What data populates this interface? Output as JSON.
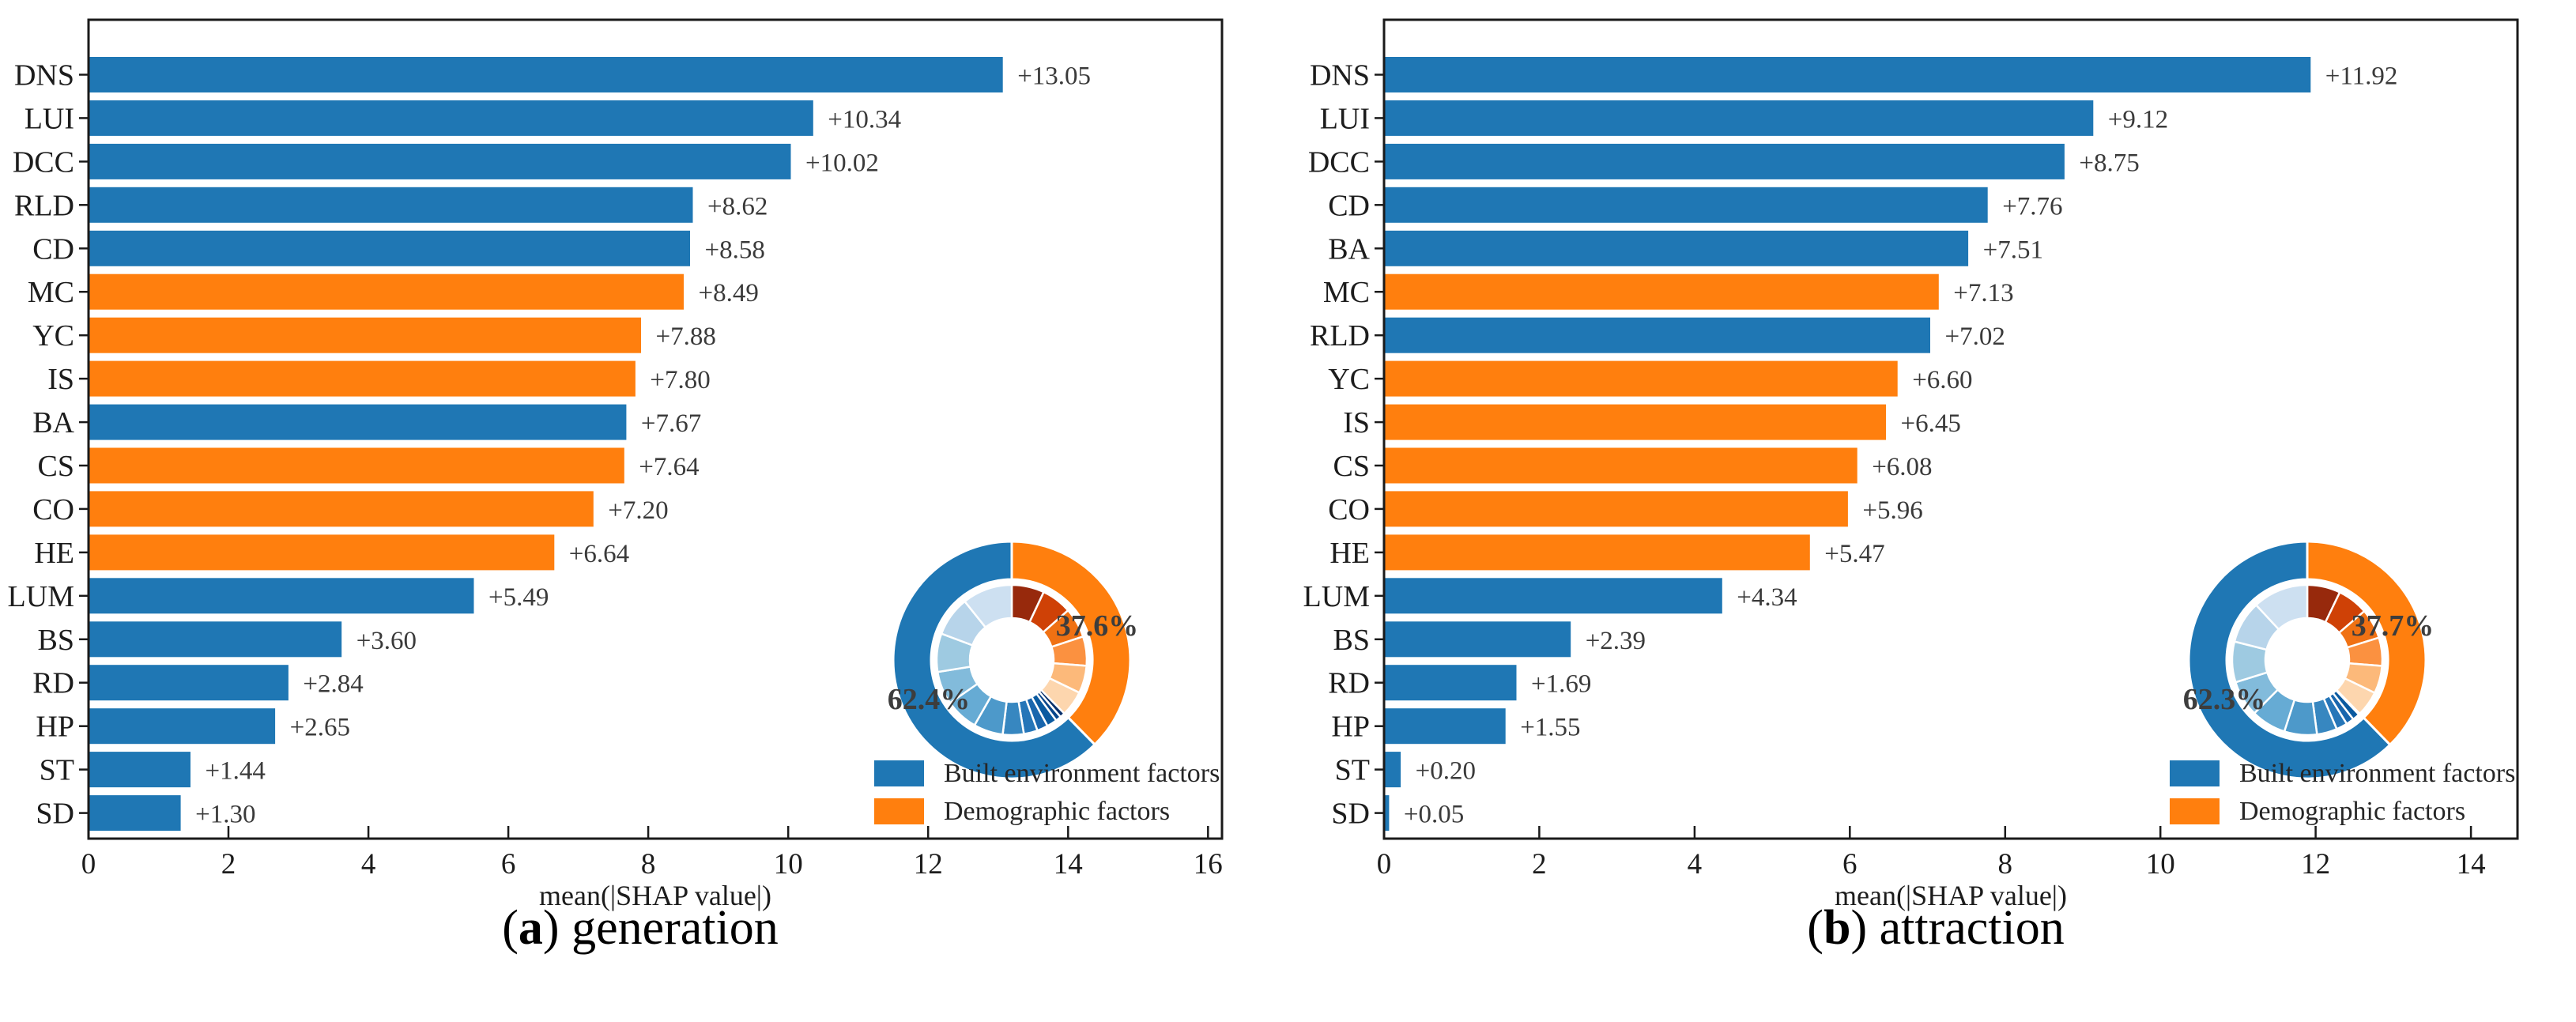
{
  "colors": {
    "built": "#1f77b4",
    "demographic": "#ff7f0e",
    "frame": "#1a1a1a",
    "tick_text": "#1c1c1c",
    "value_text": "#3a3a3a",
    "pct_text": "#3d3d3d",
    "legend_text": "#262626",
    "inner_oranges": [
      "#97290c",
      "#cf4106",
      "#f07113",
      "#fb9140",
      "#fcb97a",
      "#fdd6ae"
    ],
    "inner_blues": [
      "#08306b",
      "#08468b",
      "#0a5aa0",
      "#1966ad",
      "#2676b8",
      "#3787c0",
      "#4d99ca",
      "#66abd4",
      "#82bbdb",
      "#9ecae1",
      "#b7d4ea",
      "#cde0f1"
    ]
  },
  "chart_data": [
    {
      "type": "bar",
      "orientation": "horizontal",
      "caption": {
        "pre": "(",
        "letter": "a",
        "post": ") generation"
      },
      "categories": [
        "DNS",
        "LUI",
        "DCC",
        "RLD",
        "CD",
        "MC",
        "YC",
        "IS",
        "BA",
        "CS",
        "CO",
        "HE",
        "LUM",
        "BS",
        "RD",
        "HP",
        "ST",
        "SD"
      ],
      "values": [
        13.05,
        10.34,
        10.02,
        8.62,
        8.58,
        8.49,
        7.88,
        7.8,
        7.67,
        7.64,
        7.2,
        6.64,
        5.49,
        3.6,
        2.84,
        2.65,
        1.44,
        1.3
      ],
      "value_labels": [
        "+13.05",
        "+10.34",
        "+10.02",
        "+8.62",
        "+8.58",
        "+8.49",
        "+7.88",
        "+7.80",
        "+7.67",
        "+7.64",
        "+7.20",
        "+6.64",
        "+5.49",
        "+3.60",
        "+2.84",
        "+2.65",
        "+1.44",
        "+1.30"
      ],
      "groups": [
        "built",
        "built",
        "built",
        "built",
        "built",
        "demographic",
        "demographic",
        "demographic",
        "built",
        "demographic",
        "demographic",
        "demographic",
        "built",
        "built",
        "built",
        "built",
        "built",
        "built"
      ],
      "xlabel": "mean(|SHAP value|)",
      "xlim": [
        0,
        16.2
      ],
      "xticks": [
        0,
        2,
        4,
        6,
        8,
        10,
        12,
        14,
        16
      ],
      "grid": false,
      "legend": [
        "Built environment factors",
        "Demographic factors"
      ],
      "legend_position": "lower right",
      "inset_donut": {
        "type": "pie",
        "outer": [
          {
            "name": "Built environment factors",
            "pct": 62.4
          },
          {
            "name": "Demographic factors",
            "pct": 37.6
          }
        ],
        "labels": [
          "62.4%",
          "37.6%"
        ]
      }
    },
    {
      "type": "bar",
      "orientation": "horizontal",
      "caption": {
        "pre": "(",
        "letter": "b",
        "post": ") attraction"
      },
      "categories": [
        "DNS",
        "LUI",
        "DCC",
        "CD",
        "BA",
        "MC",
        "RLD",
        "YC",
        "IS",
        "CS",
        "CO",
        "HE",
        "LUM",
        "BS",
        "RD",
        "HP",
        "ST",
        "SD"
      ],
      "values": [
        11.92,
        9.12,
        8.75,
        7.76,
        7.51,
        7.13,
        7.02,
        6.6,
        6.45,
        6.08,
        5.96,
        5.47,
        4.34,
        2.39,
        1.69,
        1.55,
        0.2,
        0.05
      ],
      "value_labels": [
        "+11.92",
        "+9.12",
        "+8.75",
        "+7.76",
        "+7.51",
        "+7.13",
        "+7.02",
        "+6.60",
        "+6.45",
        "+6.08",
        "+5.96",
        "+5.47",
        "+4.34",
        "+2.39",
        "+1.69",
        "+1.55",
        "+0.20",
        "+0.05"
      ],
      "groups": [
        "built",
        "built",
        "built",
        "built",
        "built",
        "demographic",
        "built",
        "demographic",
        "demographic",
        "demographic",
        "demographic",
        "demographic",
        "built",
        "built",
        "built",
        "built",
        "built",
        "built"
      ],
      "xlabel": "mean(|SHAP value|)",
      "xlim": [
        0,
        14.6
      ],
      "xticks": [
        0,
        2,
        4,
        6,
        8,
        10,
        12,
        14
      ],
      "grid": false,
      "legend": [
        "Built environment factors",
        "Demographic factors"
      ],
      "legend_position": "lower right",
      "inset_donut": {
        "type": "pie",
        "outer": [
          {
            "name": "Built environment factors",
            "pct": 62.3
          },
          {
            "name": "Demographic factors",
            "pct": 37.7
          }
        ],
        "labels": [
          "62.3%",
          "37.7%"
        ]
      }
    }
  ]
}
